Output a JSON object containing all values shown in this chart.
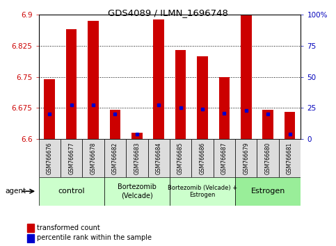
{
  "title": "GDS4089 / ILMN_1696748",
  "samples": [
    "GSM766676",
    "GSM766677",
    "GSM766678",
    "GSM766682",
    "GSM766683",
    "GSM766684",
    "GSM766685",
    "GSM766686",
    "GSM766687",
    "GSM766679",
    "GSM766680",
    "GSM766681"
  ],
  "bar_tops": [
    6.745,
    6.865,
    6.885,
    6.67,
    6.615,
    6.888,
    6.815,
    6.8,
    6.75,
    6.9,
    6.67,
    6.665
  ],
  "bar_bottom": 6.6,
  "percentile_values": [
    6.66,
    6.683,
    6.683,
    6.661,
    6.612,
    6.683,
    6.676,
    6.672,
    6.662,
    6.669,
    6.661,
    6.612
  ],
  "bar_color": "#cc0000",
  "percentile_color": "#0000cc",
  "ylim_left": [
    6.6,
    6.9
  ],
  "ylim_right": [
    0,
    100
  ],
  "yticks_left": [
    6.6,
    6.675,
    6.75,
    6.825,
    6.9
  ],
  "ytick_labels_left": [
    "6.6",
    "6.675",
    "6.75",
    "6.825",
    "6.9"
  ],
  "yticks_right": [
    0,
    25,
    50,
    75,
    100
  ],
  "ytick_labels_right": [
    "0",
    "25",
    "50",
    "75",
    "100%"
  ],
  "groups": [
    {
      "label": "control",
      "start": 0,
      "end": 3,
      "color": "#ccffcc",
      "fontsize": 8
    },
    {
      "label": "Bortezomib\n(Velcade)",
      "start": 3,
      "end": 6,
      "color": "#ccffcc",
      "fontsize": 7
    },
    {
      "label": "Bortezomib (Velcade) +\nEstrogen",
      "start": 6,
      "end": 9,
      "color": "#ccffcc",
      "fontsize": 6
    },
    {
      "label": "Estrogen",
      "start": 9,
      "end": 12,
      "color": "#99ee99",
      "fontsize": 8
    }
  ],
  "legend_items": [
    {
      "label": "transformed count",
      "color": "#cc0000"
    },
    {
      "label": "percentile rank within the sample",
      "color": "#0000cc"
    }
  ],
  "tick_color_left": "#cc0000",
  "tick_color_right": "#0000bb",
  "bar_width": 0.5
}
